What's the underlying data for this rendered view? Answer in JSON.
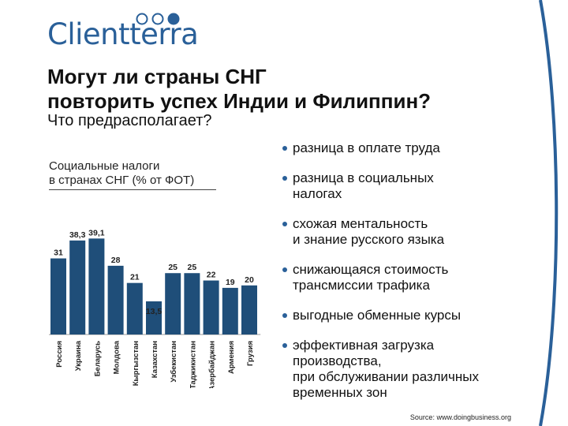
{
  "logo": {
    "text": "Clientterra",
    "accent": "#2a6099"
  },
  "title_line1": "Могут ли страны СНГ",
  "title_line2": "повторить успех Индии и Филиппин?",
  "subtitle": "Что предрасполагает?",
  "chart_title_line1": "Социальные налоги",
  "chart_title_line2": "в странах СНГ (% от ФОТ)",
  "bullets": [
    [
      "разница в оплате труда"
    ],
    [
      "разница в социальных",
      "налогах"
    ],
    [
      "схожая ментальность",
      "и знание русского языка"
    ],
    [
      "снижающаяся стоимость",
      "трансмиссии трафика"
    ],
    [
      "выгодные обменные курсы"
    ],
    [
      "эффективная загрузка",
      "производства,",
      "при обслуживании различных",
      "временных зон"
    ]
  ],
  "source": "Source: www.doingbusiness.org",
  "colors": {
    "bar": "#1f4e79",
    "accent": "#2a6099",
    "arc": "#2a6099"
  },
  "chart_data": {
    "type": "bar",
    "title": "Социальные налоги в странах СНГ (% от ФОТ)",
    "categories": [
      "Россия",
      "Украина",
      "Беларусь",
      "Молдова",
      "Кыргызстан",
      "Казахстан",
      "Узбекистан",
      "Таджикистан",
      "Азербайджан",
      "Армения",
      "Грузия"
    ],
    "values": [
      31,
      38.3,
      39.1,
      28,
      21,
      13.5,
      25,
      25,
      22,
      19,
      20
    ],
    "value_labels": [
      "31",
      "38,3",
      "39,1",
      "28",
      "21",
      "13,5",
      "25",
      "25",
      "22",
      "19",
      "20"
    ],
    "ylim": [
      0,
      45
    ],
    "grid": false,
    "legend": "none"
  }
}
